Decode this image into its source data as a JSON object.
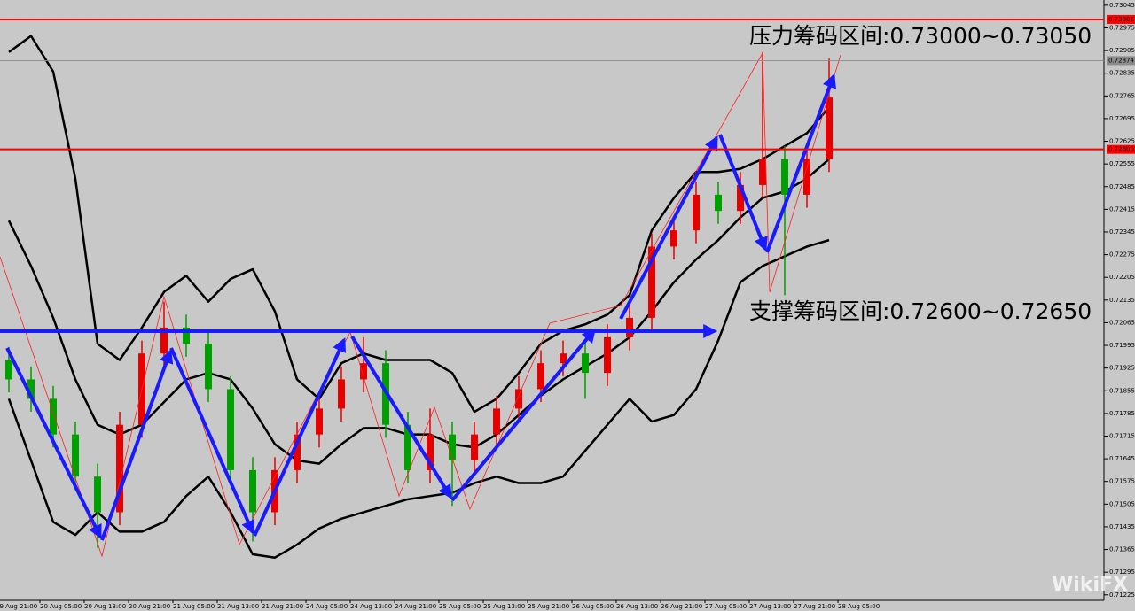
{
  "chart_data": {
    "type": "candlestick",
    "x_labels": [
      "19 Aug 21:00",
      "20 Aug 05:00",
      "20 Aug 13:00",
      "20 Aug 21:00",
      "21 Aug 05:00",
      "21 Aug 13:00",
      "21 Aug 21:00",
      "24 Aug 05:00",
      "24 Aug 13:00",
      "24 Aug 21:00",
      "25 Aug 05:00",
      "25 Aug 13:00",
      "25 Aug 21:00",
      "26 Aug 05:00",
      "26 Aug 13:00",
      "26 Aug 21:00",
      "27 Aug 05:00",
      "27 Aug 13:00",
      "27 Aug 21:00",
      "28 Aug 05:00"
    ],
    "open": [
      0.7195,
      0.7189,
      0.7183,
      0.7172,
      0.7159,
      0.7148,
      0.7175,
      0.7197,
      0.7205,
      0.72,
      0.7186,
      0.7161,
      0.7148,
      0.7161,
      0.7172,
      0.718,
      0.7189,
      0.7194,
      0.7175,
      0.7161,
      0.7172,
      0.7164,
      0.7172,
      0.718,
      0.7186,
      0.7194,
      0.7197,
      0.7191,
      0.7202,
      0.7208,
      0.723,
      0.7235,
      0.7246,
      0.7241,
      0.7249,
      0.7257,
      0.7246,
      0.7257
    ],
    "high": [
      0.7199,
      0.7193,
      0.7187,
      0.7176,
      0.7163,
      0.7179,
      0.7201,
      0.7213,
      0.7209,
      0.7204,
      0.719,
      0.7165,
      0.7165,
      0.7176,
      0.7184,
      0.7193,
      0.7202,
      0.7198,
      0.7179,
      0.718,
      0.7176,
      0.7176,
      0.7184,
      0.719,
      0.7198,
      0.7201,
      0.7201,
      0.7206,
      0.7212,
      0.7234,
      0.7239,
      0.725,
      0.725,
      0.7253,
      0.729,
      0.7261,
      0.7261,
      0.7288
    ],
    "low": [
      0.7185,
      0.7179,
      0.7168,
      0.7155,
      0.7137,
      0.7144,
      0.7171,
      0.7193,
      0.7196,
      0.7182,
      0.7157,
      0.7139,
      0.7144,
      0.7157,
      0.7168,
      0.7176,
      0.7185,
      0.7171,
      0.7157,
      0.7157,
      0.715,
      0.716,
      0.7168,
      0.7176,
      0.7182,
      0.719,
      0.7183,
      0.7187,
      0.7198,
      0.7204,
      0.7226,
      0.7231,
      0.7237,
      0.7237,
      0.7245,
      0.7215,
      0.7242,
      0.7253
    ],
    "close": [
      0.7189,
      0.7183,
      0.7172,
      0.7159,
      0.7148,
      0.7175,
      0.7197,
      0.7205,
      0.72,
      0.7186,
      0.7161,
      0.7148,
      0.7161,
      0.7172,
      0.718,
      0.7189,
      0.7194,
      0.7175,
      0.7161,
      0.7172,
      0.7164,
      0.7172,
      0.718,
      0.7186,
      0.7194,
      0.7197,
      0.7191,
      0.7202,
      0.7208,
      0.723,
      0.7235,
      0.7246,
      0.7241,
      0.7249,
      0.7257,
      0.7246,
      0.7257,
      0.7276
    ],
    "up_color": "#e60000",
    "down_color": "#00a000",
    "bands": [
      {
        "color": "#000000",
        "values": [
          0.729,
          0.7295,
          0.7284,
          0.7251,
          0.72,
          0.7195,
          0.7205,
          0.7216,
          0.7221,
          0.7213,
          0.722,
          0.7223,
          0.721,
          0.7189,
          0.7183,
          0.7194,
          0.7197,
          0.7195,
          0.7195,
          0.7195,
          0.7191,
          0.7179,
          0.7183,
          0.7191,
          0.72,
          0.7204,
          0.7206,
          0.7209,
          0.7215,
          0.7235,
          0.7245,
          0.7253,
          0.7253,
          0.7254,
          0.7257,
          0.7261,
          0.7265,
          0.7273
        ]
      },
      {
        "color": "#000000",
        "values": [
          0.7238,
          0.7224,
          0.7208,
          0.7189,
          0.7175,
          0.7172,
          0.7175,
          0.7182,
          0.7189,
          0.7191,
          0.7189,
          0.718,
          0.7169,
          0.7164,
          0.7163,
          0.7169,
          0.7174,
          0.7174,
          0.7172,
          0.7172,
          0.7169,
          0.7168,
          0.7172,
          0.7178,
          0.7184,
          0.7189,
          0.7193,
          0.7197,
          0.7202,
          0.721,
          0.7219,
          0.7226,
          0.7232,
          0.7239,
          0.7245,
          0.7247,
          0.7251,
          0.7257
        ]
      },
      {
        "color": "#000000",
        "values": [
          0.7183,
          0.7164,
          0.7145,
          0.7141,
          0.7148,
          0.7142,
          0.7142,
          0.7145,
          0.7153,
          0.7159,
          0.7148,
          0.7135,
          0.7134,
          0.7138,
          0.7143,
          0.7146,
          0.7148,
          0.715,
          0.7152,
          0.7153,
          0.7154,
          0.7157,
          0.7159,
          0.7157,
          0.7157,
          0.7159,
          0.7167,
          0.7175,
          0.7183,
          0.7176,
          0.7178,
          0.7186,
          0.7201,
          0.7219,
          0.7224,
          0.7227,
          0.723,
          0.7232
        ]
      }
    ],
    "ylim": [
      0.71208,
      0.73061
    ],
    "yticks": [
      0.73045,
      0.72975,
      0.72905,
      0.72835,
      0.72765,
      0.72695,
      0.72625,
      0.72555,
      0.72485,
      0.72415,
      0.72345,
      0.72275,
      0.72205,
      0.72135,
      0.72065,
      0.71995,
      0.71925,
      0.71855,
      0.71785,
      0.71715,
      0.71645,
      0.71575,
      0.71505,
      0.71435,
      0.71365,
      0.71295,
      0.71225
    ],
    "levels": [
      {
        "value": 0.73001,
        "label": "0.73001",
        "color": "#ff0000"
      },
      {
        "value": 0.72874,
        "label": "0.72874",
        "color": "#8c8c8c"
      },
      {
        "value": 0.726,
        "label": "0.72600",
        "color": "#ff0000"
      }
    ],
    "annotations": [
      "压力筹码区间:0.73000~0.73050",
      "支撑筹码区间:0.72600~0.72650"
    ]
  },
  "watermark": "WikiFX"
}
